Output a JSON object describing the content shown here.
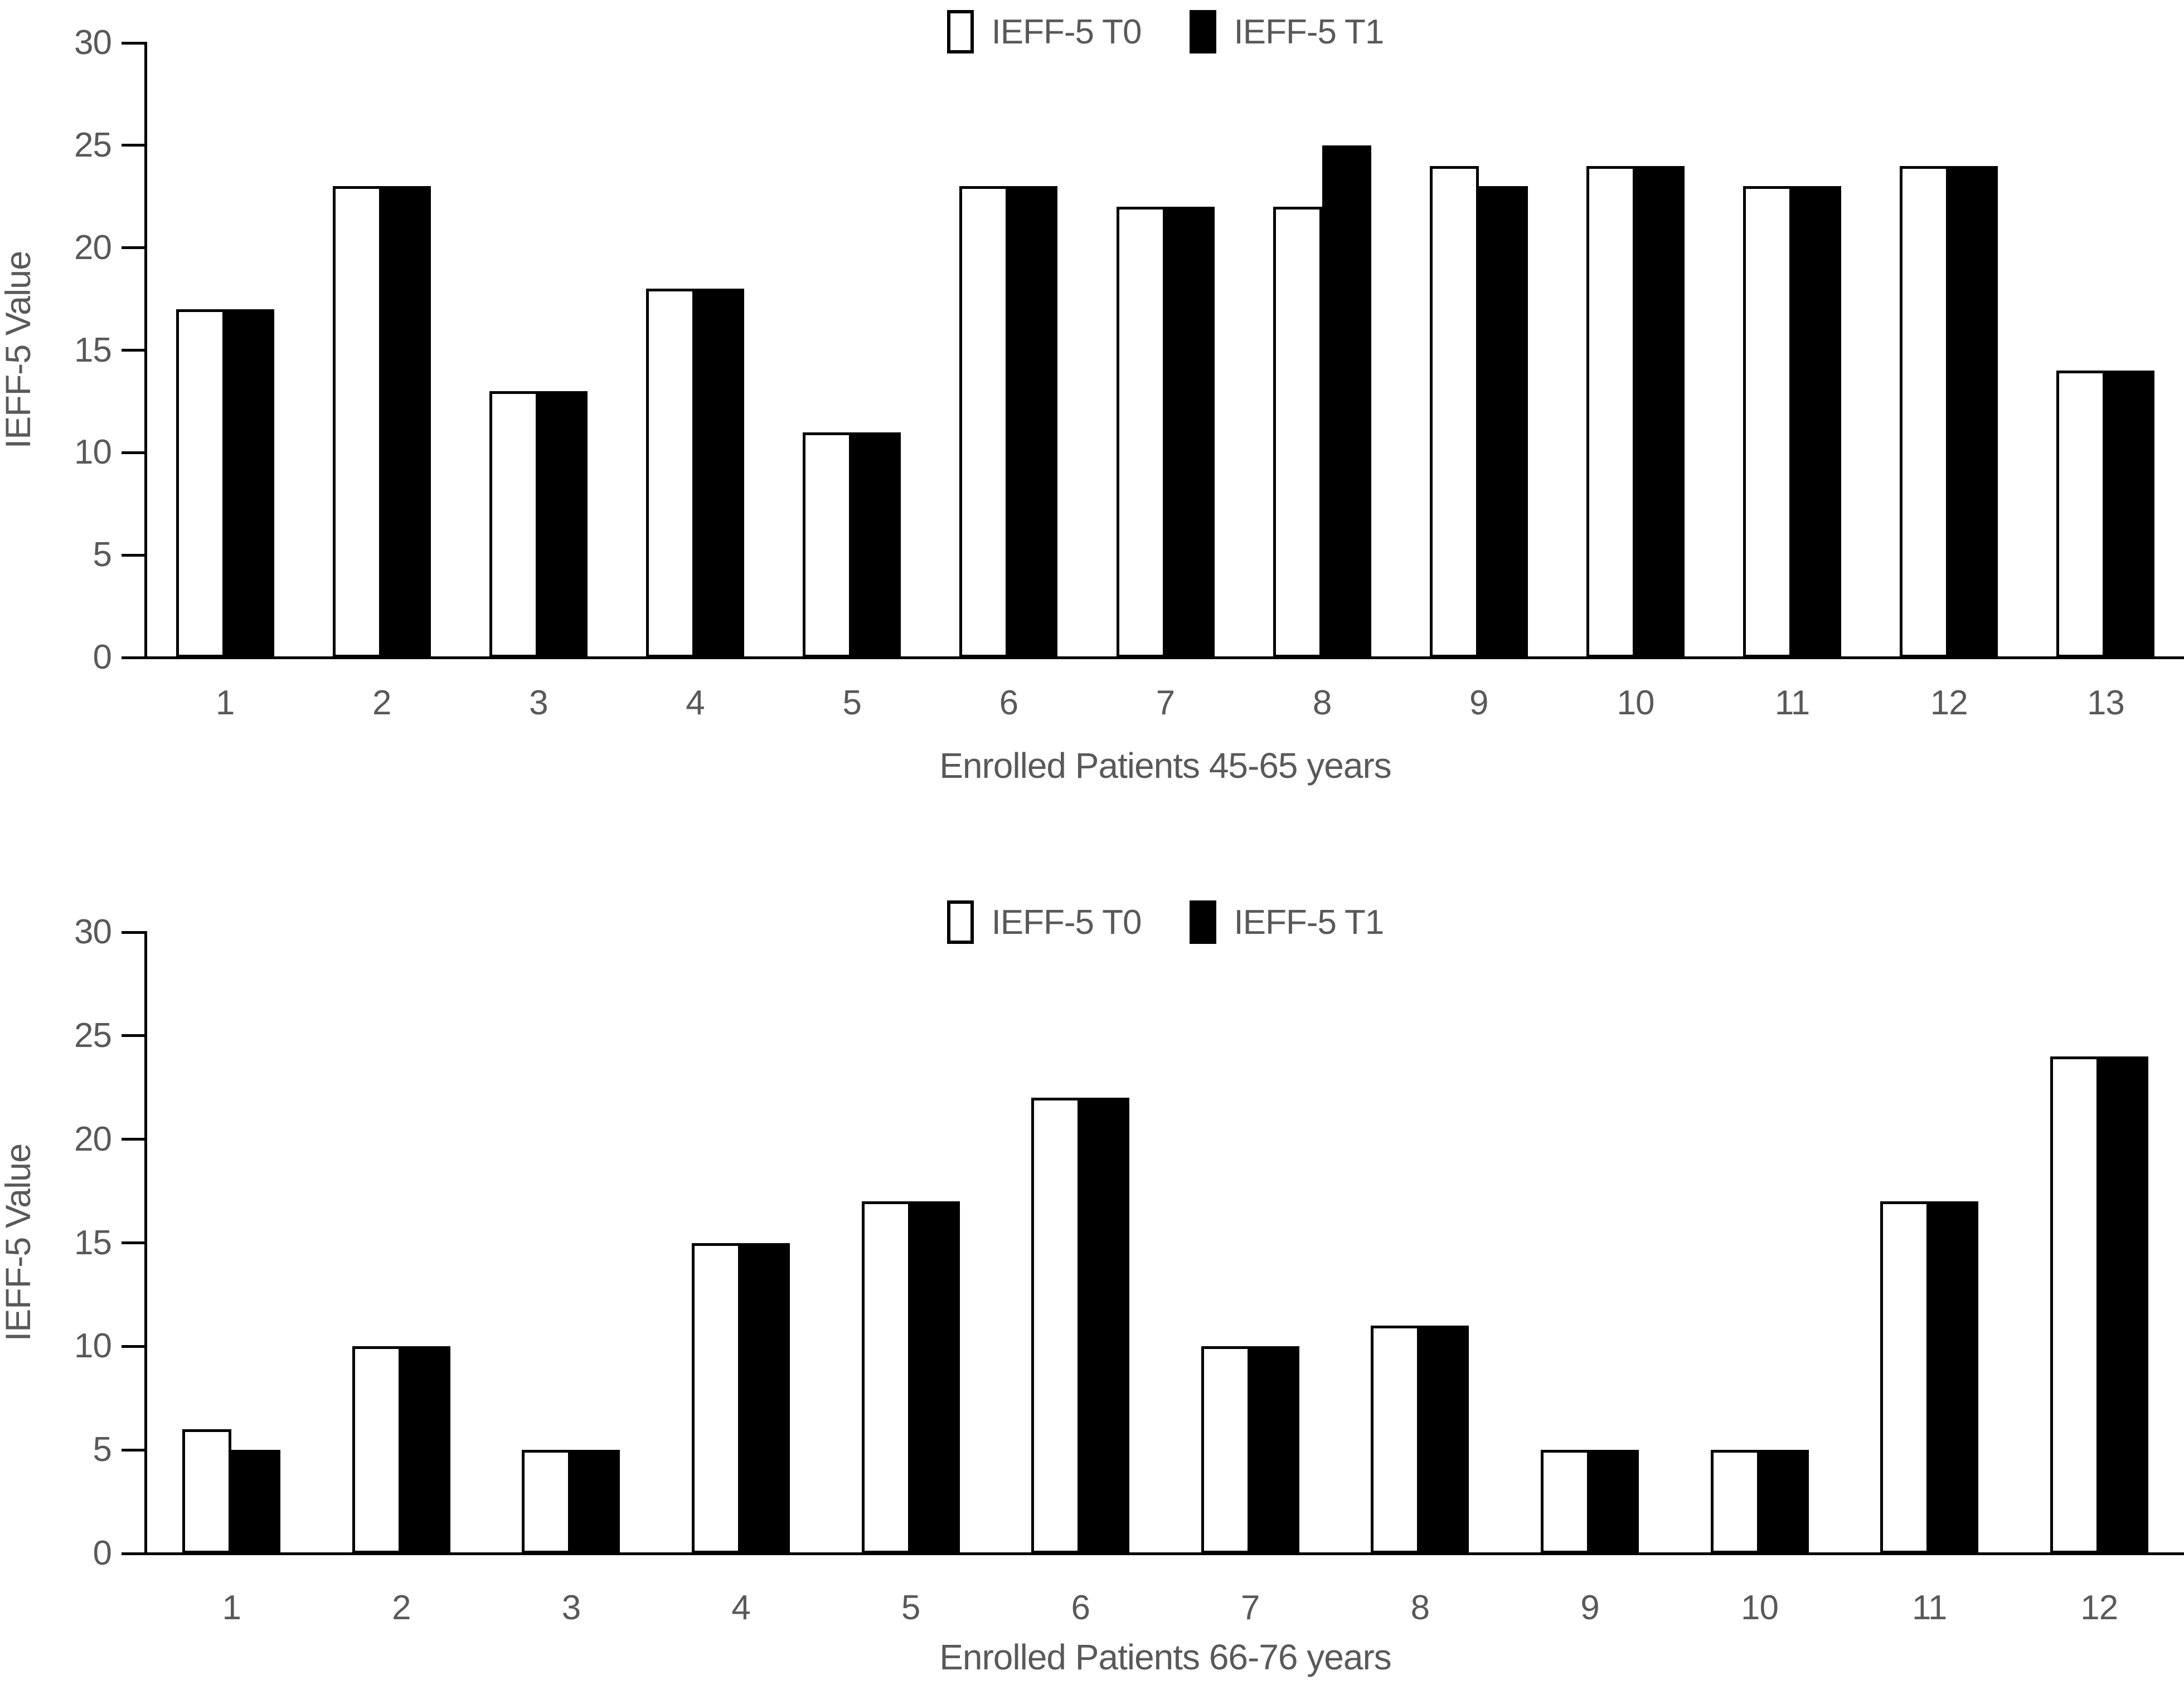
{
  "page": {
    "background": "#ffffff"
  },
  "colors": {
    "text": "#595959",
    "axis": "#000000",
    "t0_fill": "#ffffff",
    "t0_border": "#000000",
    "t1_fill": "#000000"
  },
  "chart_data": [
    {
      "type": "bar",
      "title": "",
      "xlabel": "Enrolled Patients 45-65 years",
      "ylabel": "IEFF-5 Value",
      "ylim": [
        0,
        30
      ],
      "yticks": [
        0,
        5,
        10,
        15,
        20,
        25,
        30
      ],
      "grid": false,
      "legend_position": "top-center",
      "categories": [
        "1",
        "2",
        "3",
        "4",
        "5",
        "6",
        "7",
        "8",
        "9",
        "10",
        "11",
        "12",
        "13"
      ],
      "series": [
        {
          "name": "IEFF-5 T0",
          "style": "outline",
          "values": [
            17,
            23,
            13,
            18,
            11,
            23,
            22,
            22,
            24,
            24,
            23,
            24,
            14
          ]
        },
        {
          "name": "IEFF-5 T1",
          "style": "filled",
          "values": [
            17,
            23,
            13,
            18,
            11,
            23,
            22,
            25,
            23,
            24,
            23,
            24,
            14
          ]
        }
      ]
    },
    {
      "type": "bar",
      "title": "",
      "xlabel": "Enrolled Patients 66-76 years",
      "ylabel": "IEFF-5 Value",
      "ylim": [
        0,
        30
      ],
      "yticks": [
        0,
        5,
        10,
        15,
        20,
        25,
        30
      ],
      "grid": false,
      "legend_position": "top-center",
      "categories": [
        "1",
        "2",
        "3",
        "4",
        "5",
        "6",
        "7",
        "8",
        "9",
        "10",
        "11",
        "12"
      ],
      "series": [
        {
          "name": "IEFF-5 T0",
          "style": "outline",
          "values": [
            6,
            10,
            5,
            15,
            17,
            22,
            10,
            11,
            5,
            5,
            17,
            24
          ]
        },
        {
          "name": "IEFF-5 T1",
          "style": "filled",
          "values": [
            5,
            10,
            5,
            15,
            17,
            22,
            10,
            11,
            5,
            5,
            17,
            24
          ]
        }
      ]
    }
  ]
}
